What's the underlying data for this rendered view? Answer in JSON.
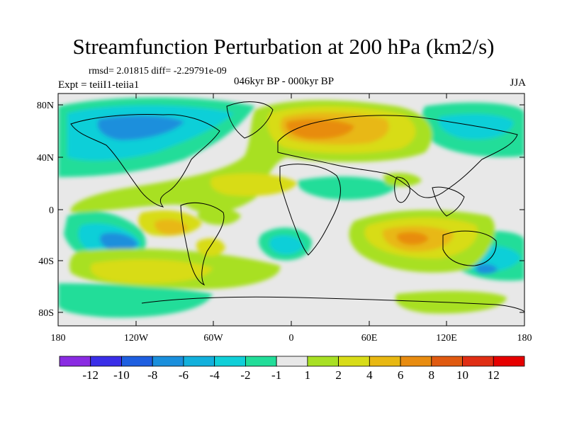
{
  "title": "Streamfunction Perturbation at 200 hPa (km2/s)",
  "stats": "rmsd= 2.01815 diff= -2.29791e-09",
  "experiment": "Expt = teiiI1-teiia1",
  "period": "046kyr BP - 000kyr BP",
  "season": "JJA",
  "map": {
    "lat_labels": [
      "80N",
      "40N",
      "0",
      "40S",
      "80S"
    ],
    "lon_labels": [
      "180",
      "120W",
      "60W",
      "0",
      "60E",
      "120E",
      "180"
    ]
  },
  "colorbar": {
    "labels": [
      "-12",
      "-10",
      "-8",
      "-6",
      "-4",
      "-2",
      "-1",
      "1",
      "2",
      "4",
      "6",
      "8",
      "10",
      "12"
    ],
    "colors": [
      "#8a2be2",
      "#3a2ee8",
      "#1e5fe0",
      "#1a8fdc",
      "#12b0dc",
      "#10cfd8",
      "#22dd99",
      "#e8e8e8",
      "#a8e024",
      "#d8dc18",
      "#e8b812",
      "#e88c10",
      "#e05a10",
      "#e02e14",
      "#e60000"
    ]
  }
}
